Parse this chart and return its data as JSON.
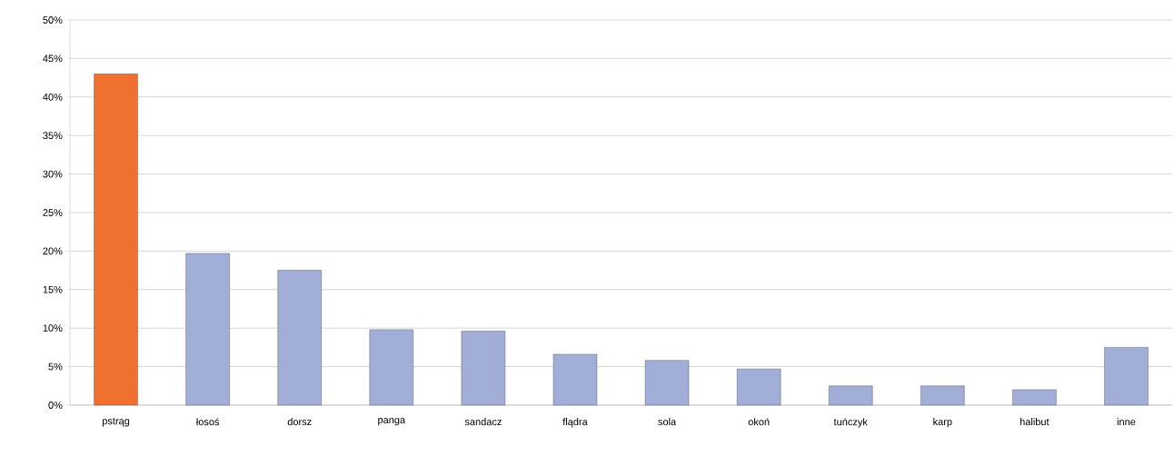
{
  "chart_data": {
    "type": "bar",
    "categories": [
      "pstrąg",
      "łosoś",
      "dorsz",
      "panga",
      "sandacz",
      "flądra",
      "sola",
      "okoń",
      "tuńczyk",
      "karp",
      "halibut",
      "inne"
    ],
    "values": [
      43,
      19.7,
      17.5,
      9.8,
      9.6,
      6.6,
      5.8,
      4.7,
      2.5,
      2.5,
      2.0,
      7.5
    ],
    "colors": [
      "#f07030",
      "#a0aed8",
      "#a0aed8",
      "#a0aed8",
      "#a0aed8",
      "#a0aed8",
      "#a0aed8",
      "#a0aed8",
      "#a0aed8",
      "#a0aed8",
      "#a0aed8",
      "#a0aed8"
    ],
    "ylim": [
      0,
      50
    ],
    "yticks": [
      {
        "value": 0,
        "label": "0%"
      },
      {
        "value": 5,
        "label": "5%"
      },
      {
        "value": 10,
        "label": "10%"
      },
      {
        "value": 15,
        "label": "15%"
      },
      {
        "value": 20,
        "label": "20%"
      },
      {
        "value": 25,
        "label": "25%"
      },
      {
        "value": 30,
        "label": "30%"
      },
      {
        "value": 35,
        "label": "35%"
      },
      {
        "value": 40,
        "label": "40%"
      },
      {
        "value": 45,
        "label": "45%"
      },
      {
        "value": 50,
        "label": "50%"
      }
    ],
    "grid": "y"
  }
}
